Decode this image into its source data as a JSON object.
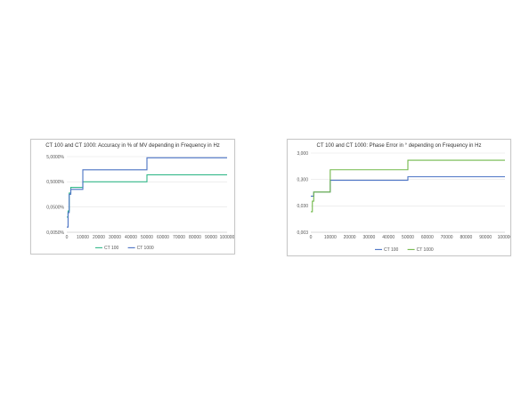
{
  "charts": [
    {
      "chart_data": {
        "type": "line",
        "title": "CT 100 and CT 1000: Accuracy in % of MV depending in Frequency in Hz",
        "xlabel": "",
        "ylabel": "",
        "y_scale": "log",
        "xlim": [
          0,
          100000
        ],
        "ylim": [
          0.005,
          7.5
        ],
        "x_ticks": [
          "0",
          "10000",
          "20000",
          "30000",
          "40000",
          "50000",
          "60000",
          "70000",
          "80000",
          "90000",
          "100000"
        ],
        "y_ticks": [
          {
            "value": 0.005,
            "label": "0,0050%"
          },
          {
            "value": 0.05,
            "label": "0,0500%"
          },
          {
            "value": 0.5,
            "label": "0,5000%"
          },
          {
            "value": 5,
            "label": "5,0000%"
          }
        ],
        "grid": "horizontal",
        "legend_position": "bottom",
        "series": [
          {
            "name": "CT 100",
            "color": "#33b889",
            "points": [
              [
                0,
                0.02
              ],
              [
                800,
                0.02
              ],
              [
                800,
                0.035
              ],
              [
                1500,
                0.035
              ],
              [
                1500,
                0.18
              ],
              [
                2500,
                0.18
              ],
              [
                2500,
                0.3
              ],
              [
                10000,
                0.3
              ],
              [
                10000,
                0.5
              ],
              [
                50000,
                0.5
              ],
              [
                50000,
                0.95
              ],
              [
                100000,
                0.95
              ]
            ]
          },
          {
            "name": "CT 1000",
            "color": "#4a72c4",
            "points": [
              [
                0,
                0.008
              ],
              [
                800,
                0.008
              ],
              [
                800,
                0.03
              ],
              [
                1500,
                0.03
              ],
              [
                1500,
                0.16
              ],
              [
                2500,
                0.16
              ],
              [
                2500,
                0.25
              ],
              [
                10000,
                0.25
              ],
              [
                10000,
                1.5
              ],
              [
                50000,
                1.5
              ],
              [
                50000,
                4.5
              ],
              [
                100000,
                4.5
              ]
            ]
          }
        ]
      }
    },
    {
      "chart_data": {
        "type": "line",
        "title": "CT 100 and CT 1000: Phase Error in ° depending on Frequency in Hz",
        "xlabel": "",
        "ylabel": "",
        "y_scale": "log",
        "xlim": [
          0,
          100000
        ],
        "ylim": [
          0.003,
          3
        ],
        "x_ticks": [
          "0",
          "10000",
          "20000",
          "30000",
          "40000",
          "50000",
          "60000",
          "70000",
          "80000",
          "90000",
          "100000"
        ],
        "y_ticks": [
          {
            "value": 0.003,
            "label": "0,003"
          },
          {
            "value": 0.03,
            "label": "0,030"
          },
          {
            "value": 0.3,
            "label": "0,300"
          },
          {
            "value": 3,
            "label": "3,000"
          }
        ],
        "grid": "horizontal",
        "legend_position": "bottom",
        "series": [
          {
            "name": "CT 100",
            "color": "#4a72c4",
            "points": [
              [
                0,
                0.07
              ],
              [
                1500,
                0.07
              ],
              [
                1500,
                0.1
              ],
              [
                10000,
                0.1
              ],
              [
                10000,
                0.28
              ],
              [
                50000,
                0.28
              ],
              [
                50000,
                0.38
              ],
              [
                100000,
                0.38
              ]
            ]
          },
          {
            "name": "CT 1000",
            "color": "#72b84a",
            "points": [
              [
                0,
                0.018
              ],
              [
                800,
                0.018
              ],
              [
                800,
                0.045
              ],
              [
                1500,
                0.045
              ],
              [
                1500,
                0.1
              ],
              [
                10000,
                0.1
              ],
              [
                10000,
                0.7
              ],
              [
                50000,
                0.7
              ],
              [
                50000,
                1.6
              ],
              [
                100000,
                1.6
              ]
            ]
          }
        ]
      }
    }
  ]
}
